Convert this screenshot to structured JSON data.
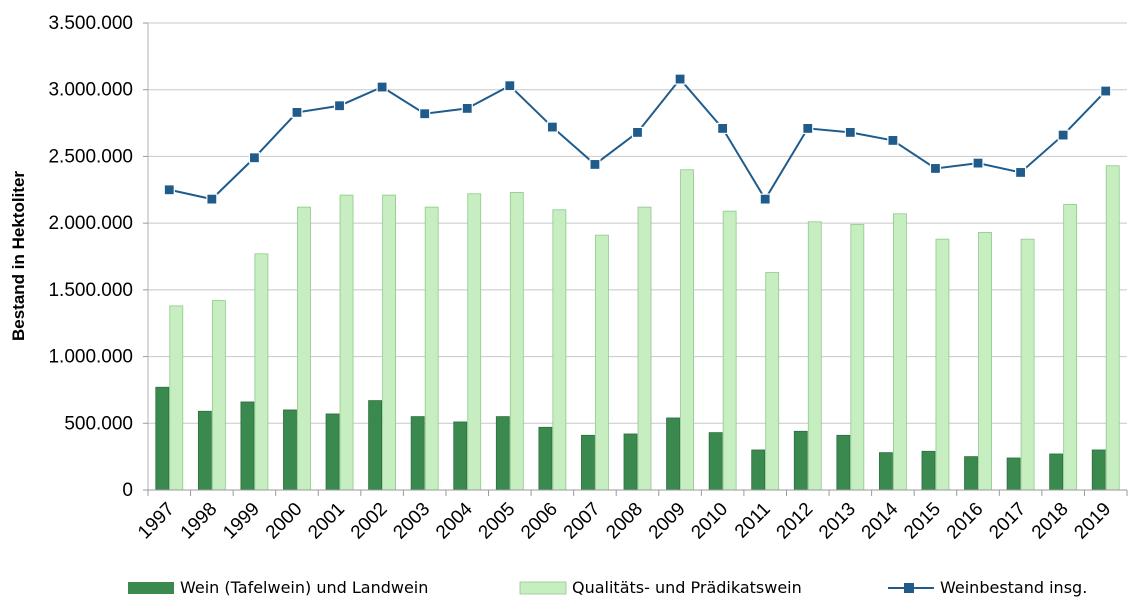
{
  "chart_data": {
    "type": "bar",
    "ylabel": "Bestand in Hektoliter",
    "ylim": [
      0,
      3500000
    ],
    "yticks": [
      0,
      500000,
      1000000,
      1500000,
      2000000,
      2500000,
      3000000,
      3500000
    ],
    "ytick_labels": [
      "0",
      "500.000",
      "1.000.000",
      "1.500.000",
      "2.000.000",
      "2.500.000",
      "3.000.000",
      "3.500.000"
    ],
    "grid": true,
    "legend_position": "bottom",
    "categories": [
      "1997",
      "1998",
      "1999",
      "2000",
      "2001",
      "2002",
      "2003",
      "2004",
      "2005",
      "2006",
      "2007",
      "2008",
      "2009",
      "2010",
      "2011",
      "2012",
      "2013",
      "2014",
      "2015",
      "2016",
      "2017",
      "2018",
      "2019"
    ],
    "series": [
      {
        "name": "Wein (Tafelwein) und Landwein",
        "kind": "bar",
        "color": "#3a8a4f",
        "values": [
          770000,
          590000,
          660000,
          600000,
          570000,
          670000,
          550000,
          510000,
          550000,
          470000,
          410000,
          420000,
          540000,
          430000,
          300000,
          440000,
          410000,
          280000,
          290000,
          250000,
          240000,
          270000,
          300000
        ]
      },
      {
        "name": "Qualitäts- und Prädikatswein",
        "kind": "bar",
        "color": "#c6eec1",
        "values": [
          1380000,
          1420000,
          1770000,
          2120000,
          2210000,
          2210000,
          2120000,
          2220000,
          2230000,
          2100000,
          1910000,
          2120000,
          2400000,
          2090000,
          1630000,
          2010000,
          1990000,
          2070000,
          1880000,
          1930000,
          1880000,
          2140000,
          2430000
        ]
      },
      {
        "name": "Weinbestand insg.",
        "kind": "line",
        "color": "#1f5c8c",
        "values": [
          2250000,
          2180000,
          2490000,
          2830000,
          2880000,
          3020000,
          2820000,
          2860000,
          3030000,
          2720000,
          2440000,
          2680000,
          3080000,
          2710000,
          2180000,
          2710000,
          2680000,
          2620000,
          2410000,
          2450000,
          2380000,
          2660000,
          2990000
        ]
      }
    ]
  }
}
